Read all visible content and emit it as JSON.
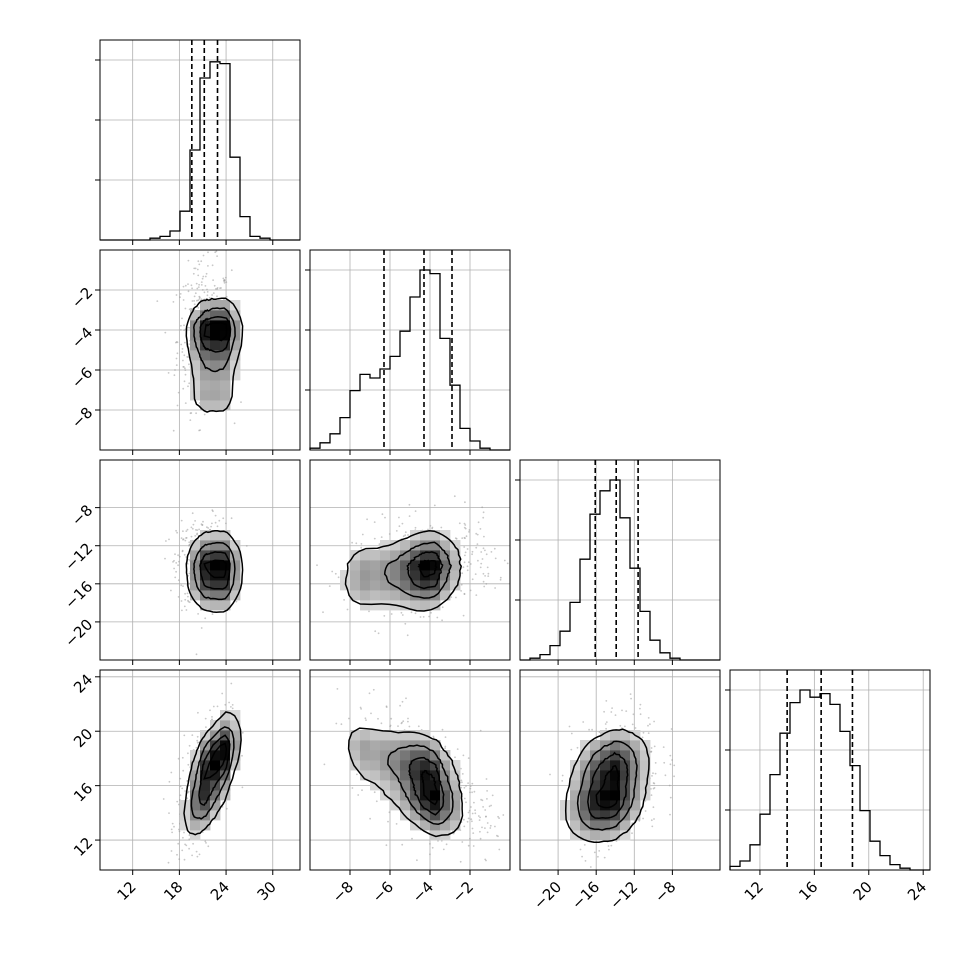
{
  "chart_data": {
    "type": "corner",
    "title": "",
    "parameters": [
      "",
      "",
      "",
      ""
    ],
    "quantiles": [
      [
        19.6,
        21.2,
        22.9
      ],
      [
        -6.3,
        -4.3,
        -2.9
      ],
      [
        -16.1,
        -13.9,
        -11.6
      ],
      [
        14.0,
        16.5,
        18.8
      ]
    ],
    "ranges": [
      [
        7.8,
        33.5
      ],
      [
        -10.0,
        0.0
      ],
      [
        -24.0,
        -3.0
      ],
      [
        9.8,
        24.5
      ]
    ],
    "ticks": [
      {
        "values": [
          12,
          18,
          24,
          30
        ],
        "labels": [
          "12",
          "18",
          "24",
          "30"
        ]
      },
      {
        "values": [
          -8,
          -6,
          -4,
          -2
        ],
        "labels": [
          "−8",
          "−6",
          "−4",
          "−2"
        ]
      },
      {
        "values": [
          -20,
          -16,
          -12,
          -8
        ],
        "labels": [
          "−20",
          "−16",
          "−12",
          "−8"
        ]
      },
      {
        "values": [
          12,
          16,
          20,
          24
        ],
        "labels": [
          "12",
          "16",
          "20",
          "24"
        ]
      }
    ],
    "histograms": [
      {
        "counts": [
          0,
          0,
          0,
          0,
          0,
          1,
          2,
          5,
          16,
          50,
          90,
          99,
          98,
          46,
          13,
          2,
          1,
          0,
          0,
          0
        ]
      },
      {
        "counts": [
          1,
          4,
          9,
          18,
          33,
          42,
          40,
          45,
          52,
          66,
          85,
          100,
          98,
          62,
          36,
          12,
          5,
          1,
          0,
          0
        ]
      },
      {
        "counts": [
          0,
          1,
          3,
          8,
          16,
          32,
          56,
          81,
          94,
          100,
          79,
          51,
          27,
          11,
          4,
          1,
          0,
          0,
          0,
          0
        ]
      },
      {
        "counts": [
          2,
          5,
          14,
          31,
          53,
          76,
          93,
          100,
          96,
          98,
          92,
          77,
          58,
          33,
          16,
          8,
          3,
          1,
          0,
          0
        ]
      }
    ],
    "grid": true,
    "legend": "none"
  }
}
